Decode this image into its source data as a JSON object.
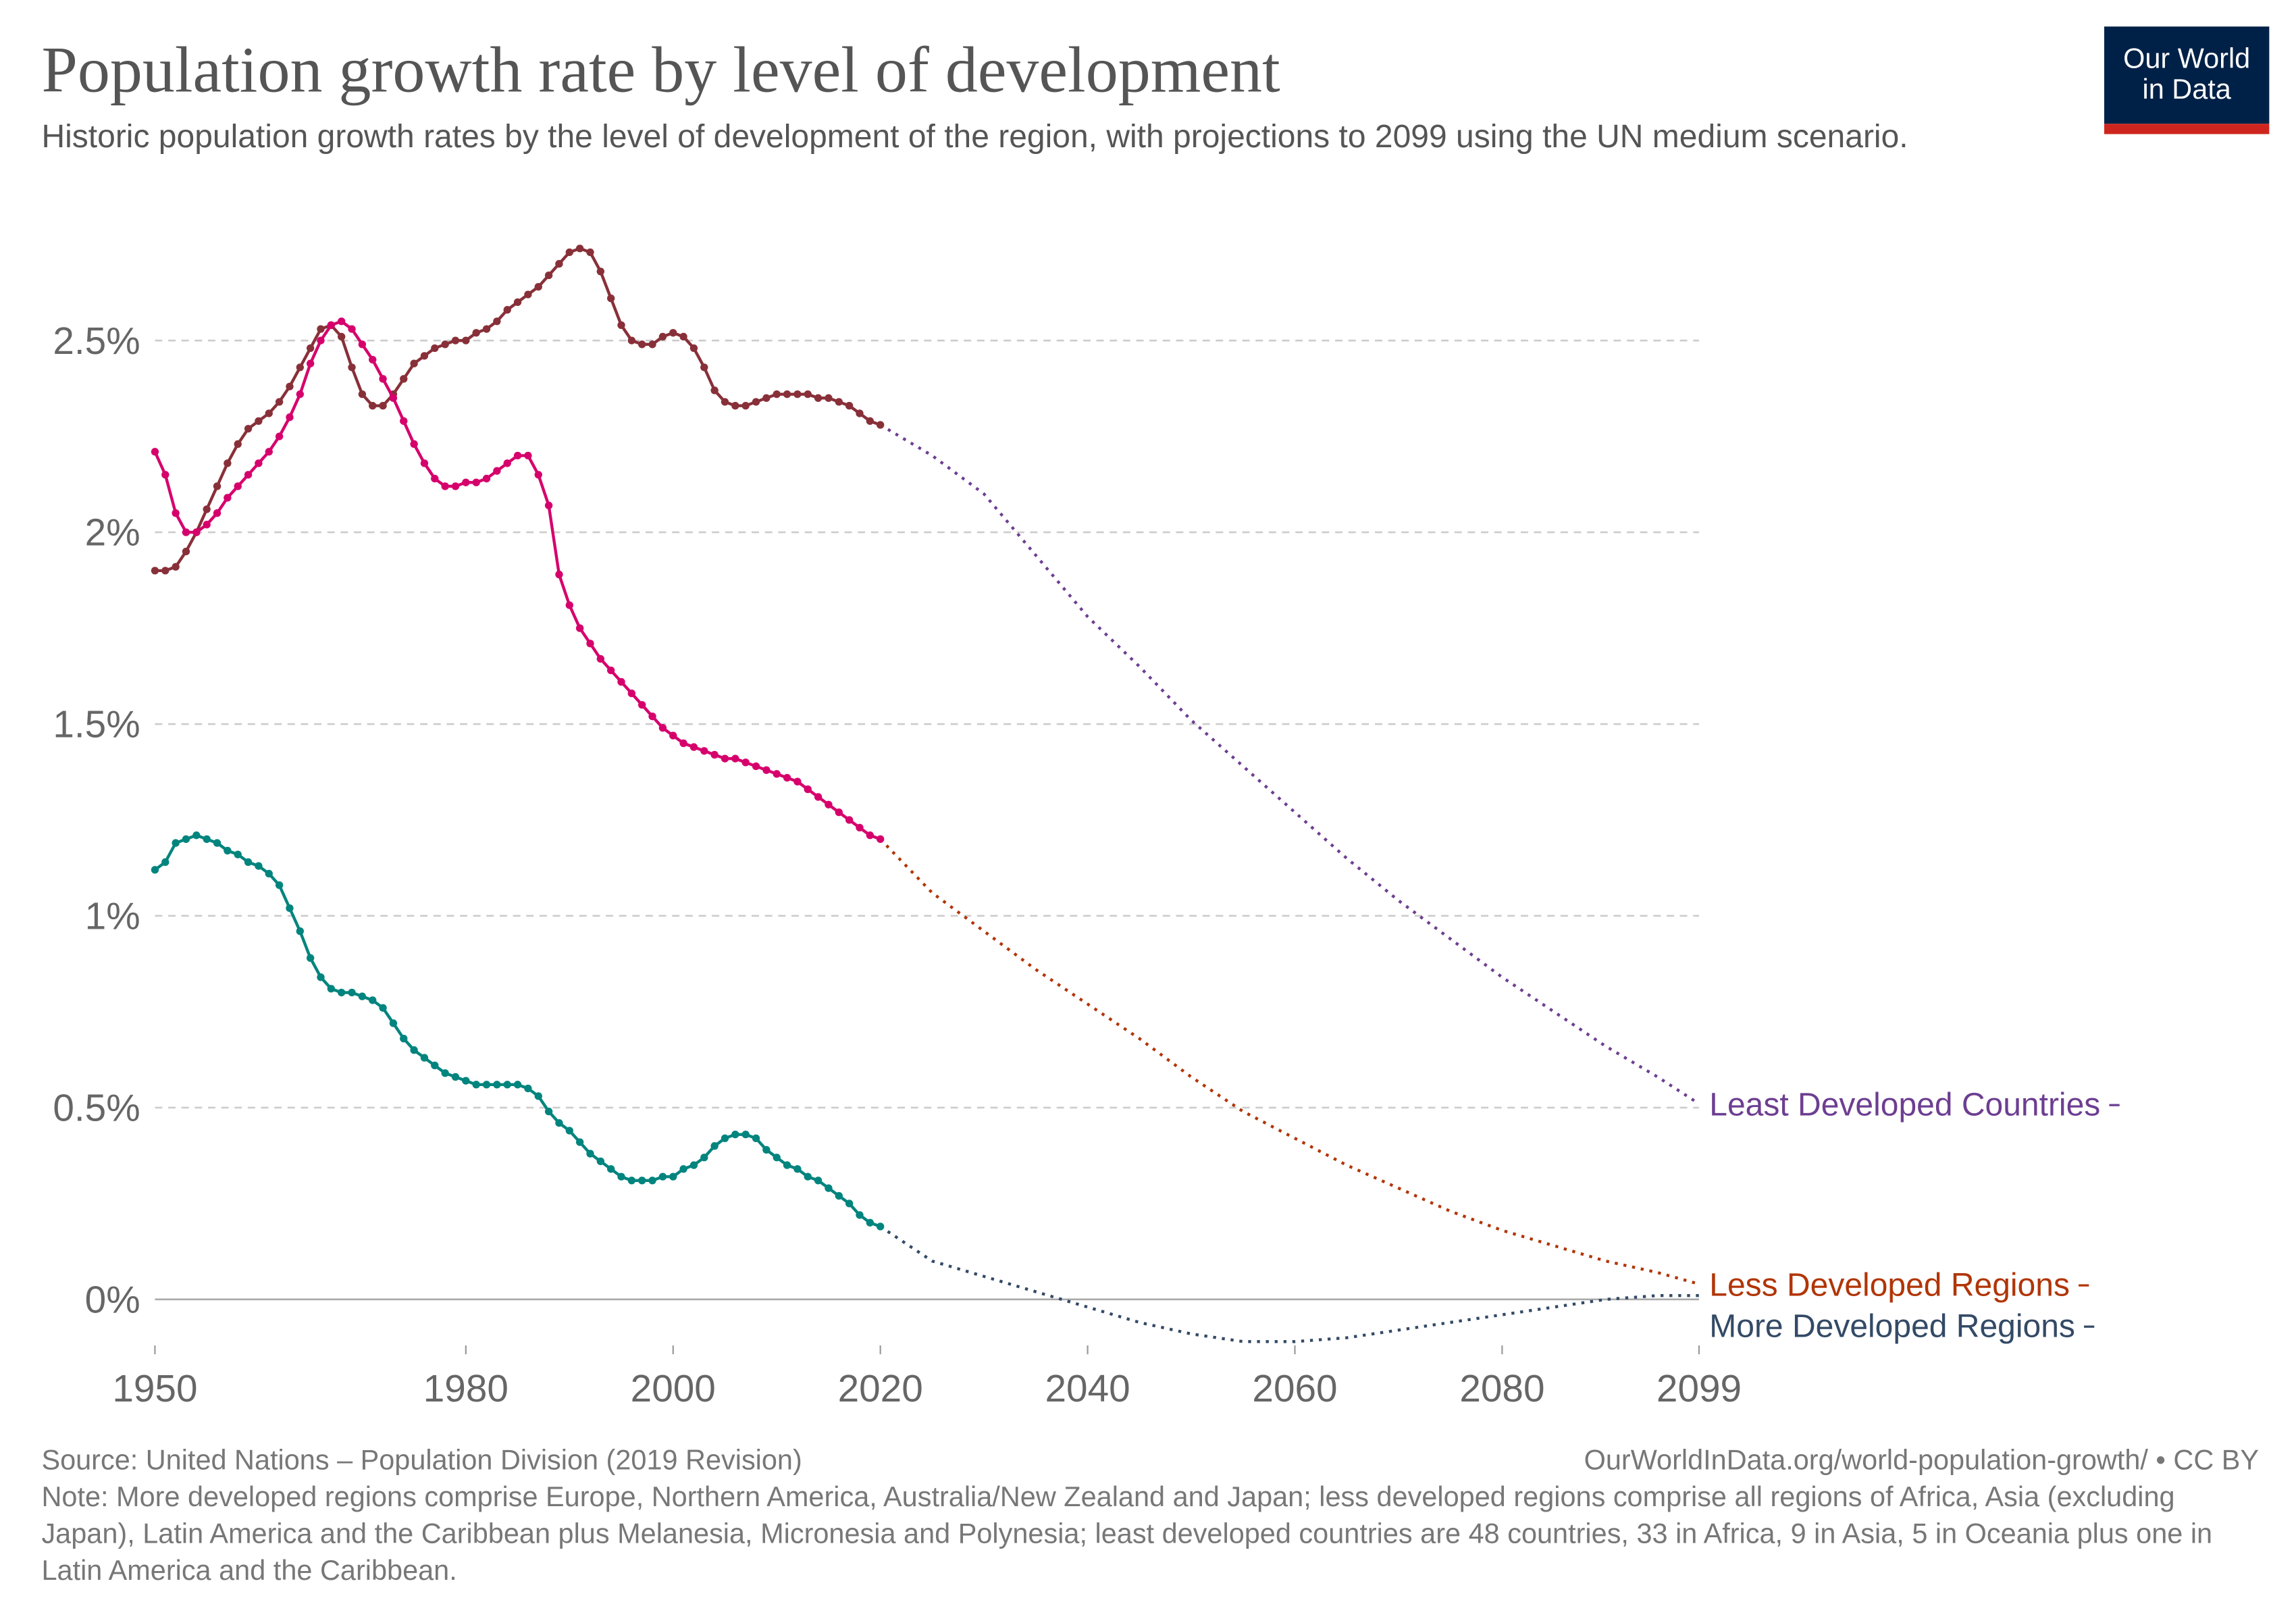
{
  "chart_data": {
    "type": "line",
    "title": "Population growth rate by level of development",
    "subtitle": "Historic population growth rates by the level of development of the region, with projections to 2099 using the UN medium scenario.",
    "logo": "Our World in Data",
    "source": "Source: United Nations – Population Division (2019 Revision)",
    "url": "OurWorldInData.org/world-population-growth/ • CC BY",
    "note": "Note: More developed regions comprise Europe, Northern America, Australia/New Zealand and Japan; less developed regions comprise all regions of Africa, Asia (excluding Japan), Latin America and the Caribbean plus Melanesia, Micronesia and Polynesia; least developed countries are 48 countries, 33 in Africa, 9 in Asia, 5 in Oceania plus one in Latin America and the Caribbean.",
    "x": [
      1950,
      1951,
      1952,
      1953,
      1954,
      1955,
      1956,
      1957,
      1958,
      1959,
      1960,
      1961,
      1962,
      1963,
      1964,
      1965,
      1966,
      1967,
      1968,
      1969,
      1970,
      1971,
      1972,
      1973,
      1974,
      1975,
      1976,
      1977,
      1978,
      1979,
      1980,
      1981,
      1982,
      1983,
      1984,
      1985,
      1986,
      1987,
      1988,
      1989,
      1990,
      1991,
      1992,
      1993,
      1994,
      1995,
      1996,
      1997,
      1998,
      1999,
      2000,
      2001,
      2002,
      2003,
      2004,
      2005,
      2006,
      2007,
      2008,
      2009,
      2010,
      2011,
      2012,
      2013,
      2014,
      2015,
      2016,
      2017,
      2018,
      2019,
      2020
    ],
    "projection_x": [
      2020,
      2025,
      2030,
      2035,
      2040,
      2045,
      2050,
      2055,
      2060,
      2065,
      2070,
      2075,
      2080,
      2085,
      2090,
      2095,
      2099
    ],
    "series": [
      {
        "name": "Least Developed Countries",
        "color": "#883039",
        "projection_color": "#6d3e91",
        "values": [
          1.9,
          1.9,
          1.91,
          1.95,
          2.0,
          2.06,
          2.12,
          2.18,
          2.23,
          2.27,
          2.29,
          2.31,
          2.34,
          2.38,
          2.43,
          2.48,
          2.53,
          2.54,
          2.51,
          2.43,
          2.36,
          2.33,
          2.33,
          2.36,
          2.4,
          2.44,
          2.46,
          2.48,
          2.49,
          2.5,
          2.5,
          2.52,
          2.53,
          2.55,
          2.58,
          2.6,
          2.62,
          2.64,
          2.67,
          2.7,
          2.73,
          2.74,
          2.73,
          2.68,
          2.61,
          2.54,
          2.5,
          2.49,
          2.49,
          2.51,
          2.52,
          2.51,
          2.48,
          2.43,
          2.37,
          2.34,
          2.33,
          2.33,
          2.34,
          2.35,
          2.36,
          2.36,
          2.36,
          2.36,
          2.35,
          2.35,
          2.34,
          2.33,
          2.31,
          2.29,
          2.28
        ],
        "projection_values": [
          2.28,
          2.2,
          2.1,
          1.94,
          1.78,
          1.65,
          1.51,
          1.39,
          1.27,
          1.15,
          1.04,
          0.94,
          0.84,
          0.75,
          0.66,
          0.58,
          0.51
        ]
      },
      {
        "name": "Less Developed Regions",
        "color": "#d6006c",
        "projection_color": "#b13507",
        "values": [
          2.21,
          2.15,
          2.05,
          2.0,
          2.0,
          2.02,
          2.05,
          2.09,
          2.12,
          2.15,
          2.18,
          2.21,
          2.25,
          2.3,
          2.36,
          2.44,
          2.5,
          2.54,
          2.55,
          2.53,
          2.49,
          2.45,
          2.4,
          2.35,
          2.29,
          2.23,
          2.18,
          2.14,
          2.12,
          2.12,
          2.13,
          2.13,
          2.14,
          2.16,
          2.18,
          2.2,
          2.2,
          2.15,
          2.07,
          1.89,
          1.81,
          1.75,
          1.71,
          1.67,
          1.64,
          1.61,
          1.58,
          1.55,
          1.52,
          1.49,
          1.47,
          1.45,
          1.44,
          1.43,
          1.42,
          1.41,
          1.41,
          1.4,
          1.39,
          1.38,
          1.37,
          1.36,
          1.35,
          1.33,
          1.31,
          1.29,
          1.27,
          1.25,
          1.23,
          1.21,
          1.2
        ],
        "projection_values": [
          1.2,
          1.06,
          0.96,
          0.86,
          0.77,
          0.68,
          0.58,
          0.49,
          0.42,
          0.35,
          0.29,
          0.23,
          0.18,
          0.14,
          0.1,
          0.07,
          0.04
        ]
      },
      {
        "name": "More Developed Regions",
        "color": "#00847e",
        "projection_color": "#334a66",
        "values": [
          1.12,
          1.14,
          1.19,
          1.2,
          1.21,
          1.2,
          1.19,
          1.17,
          1.16,
          1.14,
          1.13,
          1.11,
          1.08,
          1.02,
          0.96,
          0.89,
          0.84,
          0.81,
          0.8,
          0.8,
          0.79,
          0.78,
          0.76,
          0.72,
          0.68,
          0.65,
          0.63,
          0.61,
          0.59,
          0.58,
          0.57,
          0.56,
          0.56,
          0.56,
          0.56,
          0.56,
          0.55,
          0.53,
          0.49,
          0.46,
          0.44,
          0.41,
          0.38,
          0.36,
          0.34,
          0.32,
          0.31,
          0.31,
          0.31,
          0.32,
          0.32,
          0.34,
          0.35,
          0.37,
          0.4,
          0.42,
          0.43,
          0.43,
          0.42,
          0.39,
          0.37,
          0.35,
          0.34,
          0.32,
          0.31,
          0.29,
          0.27,
          0.25,
          0.22,
          0.2,
          0.19
        ],
        "projection_values": [
          0.19,
          0.1,
          0.06,
          0.02,
          -0.02,
          -0.06,
          -0.09,
          -0.11,
          -0.11,
          -0.1,
          -0.08,
          -0.06,
          -0.04,
          -0.02,
          0.0,
          0.01,
          0.01
        ]
      }
    ],
    "xlim": [
      1950,
      2099
    ],
    "xticks": [
      1950,
      1980,
      2000,
      2020,
      2040,
      2060,
      2080,
      2099
    ],
    "ylim": [
      -0.12,
      2.75
    ],
    "yticks": [
      {
        "value": 0,
        "label": "0%"
      },
      {
        "value": 0.5,
        "label": "0.5%"
      },
      {
        "value": 1,
        "label": "1%"
      },
      {
        "value": 1.5,
        "label": "1.5%"
      },
      {
        "value": 2,
        "label": "2%"
      },
      {
        "value": 2.5,
        "label": "2.5%"
      }
    ],
    "grid": true
  }
}
